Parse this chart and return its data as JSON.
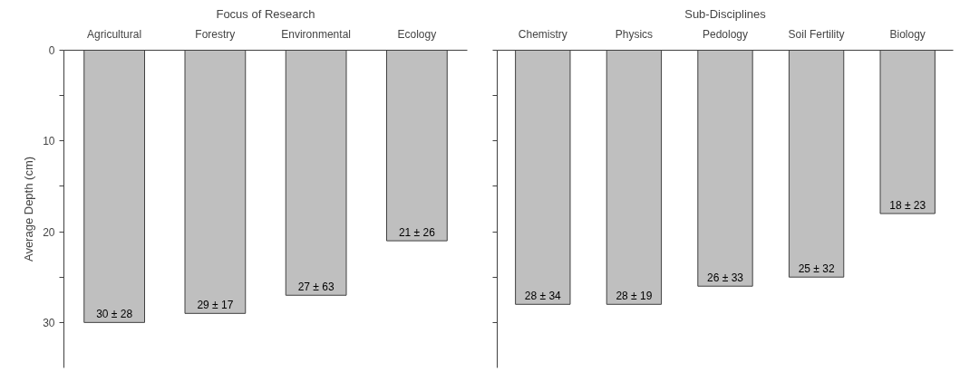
{
  "chart_data": [
    {
      "type": "bar",
      "title": "Focus of Research",
      "ylabel": "Average Depth (cm)",
      "categories": [
        "Agricultural",
        "Forestry",
        "Environmental",
        "Ecology"
      ],
      "values": [
        30,
        29,
        27,
        21
      ],
      "value_labels": [
        "30 ± 28",
        "29 ± 17",
        "27 ± 63",
        "21 ± 26"
      ],
      "color": "#bfbfbf",
      "ylim": [
        35,
        0
      ],
      "yticks": [
        0,
        {
          "value": 5,
          "label": null
        },
        10,
        {
          "value": 15,
          "label": null
        },
        20,
        {
          "value": 25,
          "label": null
        },
        30
      ],
      "grid": false
    },
    {
      "type": "bar",
      "title": "Sub-Disciplines",
      "categories": [
        "Chemistry",
        "Physics",
        "Pedology",
        "Soil Fertility",
        "Biology"
      ],
      "values": [
        28,
        28,
        26,
        25,
        18
      ],
      "value_labels": [
        "28 ± 34",
        "28 ± 19",
        "26 ± 33",
        "25 ± 32",
        "18 ± 23"
      ],
      "color": "#bfbfbf",
      "ylim": [
        35,
        0
      ],
      "yticks": [
        0,
        {
          "value": 5,
          "label": null
        },
        10,
        {
          "value": 15,
          "label": null
        },
        20,
        {
          "value": 25,
          "label": null
        },
        30
      ],
      "tick_labels": "x",
      "grid": false
    }
  ]
}
